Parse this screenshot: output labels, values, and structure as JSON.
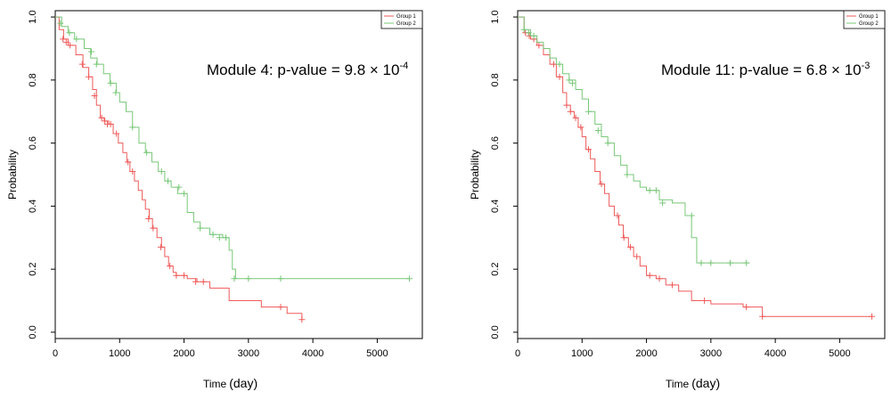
{
  "chart_data": [
    {
      "type": "line",
      "annotation": {
        "prefix": "Module 4: p-value = 9.8 × 10",
        "exponent": "-4"
      },
      "xlabel": {
        "main": "Time",
        "unit": "(day)"
      },
      "ylabel": "Probability",
      "xlim": [
        0,
        5700
      ],
      "ylim": [
        -0.02,
        1.02
      ],
      "xticks": [
        0,
        1000,
        2000,
        3000,
        4000,
        5000
      ],
      "yticks": [
        "0.0",
        "0.2",
        "0.4",
        "0.6",
        "0.8",
        "1.0"
      ],
      "legend_position": "top-right",
      "series": [
        {
          "name": "Group 1",
          "color": "#ef5a5a",
          "x": [
            0,
            60,
            130,
            200,
            320,
            430,
            520,
            580,
            640,
            700,
            760,
            830,
            900,
            980,
            1050,
            1110,
            1160,
            1230,
            1290,
            1350,
            1400,
            1460,
            1510,
            1580,
            1650,
            1700,
            1760,
            1830,
            1880,
            1950,
            2050,
            2200,
            2400,
            2700,
            3200,
            3600,
            3830
          ],
          "y": [
            1.0,
            0.96,
            0.93,
            0.91,
            0.88,
            0.84,
            0.81,
            0.77,
            0.72,
            0.68,
            0.67,
            0.66,
            0.63,
            0.6,
            0.57,
            0.54,
            0.51,
            0.48,
            0.45,
            0.42,
            0.39,
            0.36,
            0.33,
            0.3,
            0.27,
            0.24,
            0.21,
            0.19,
            0.18,
            0.18,
            0.17,
            0.16,
            0.14,
            0.1,
            0.08,
            0.06,
            0.04
          ],
          "censored_x": [
            120,
            170,
            230,
            420,
            520,
            610,
            720,
            770,
            810,
            860,
            950,
            1130,
            1200,
            1450,
            1520,
            1640,
            1780,
            1880,
            2000,
            2180,
            2300,
            3500,
            3830
          ],
          "censored_y": [
            0.93,
            0.92,
            0.91,
            0.85,
            0.81,
            0.75,
            0.68,
            0.67,
            0.66,
            0.66,
            0.63,
            0.54,
            0.51,
            0.36,
            0.33,
            0.27,
            0.21,
            0.18,
            0.18,
            0.16,
            0.16,
            0.08,
            0.04
          ]
        },
        {
          "name": "Group 2",
          "color": "#78c878",
          "x": [
            0,
            100,
            200,
            300,
            450,
            550,
            650,
            750,
            850,
            950,
            1000,
            1100,
            1200,
            1300,
            1400,
            1500,
            1600,
            1700,
            1800,
            1900,
            2050,
            2150,
            2250,
            2400,
            2600,
            2700,
            2750,
            2800,
            5500
          ],
          "y": [
            1.0,
            0.97,
            0.95,
            0.93,
            0.9,
            0.87,
            0.85,
            0.82,
            0.79,
            0.76,
            0.73,
            0.7,
            0.65,
            0.6,
            0.57,
            0.54,
            0.51,
            0.48,
            0.46,
            0.44,
            0.38,
            0.35,
            0.33,
            0.31,
            0.3,
            0.26,
            0.2,
            0.17,
            0.17
          ],
          "censored_x": [
            80,
            220,
            330,
            560,
            640,
            860,
            940,
            1200,
            1420,
            1650,
            1750,
            1920,
            2000,
            2250,
            2450,
            2550,
            2650,
            2780,
            3000,
            3500,
            5500
          ],
          "censored_y": [
            0.98,
            0.95,
            0.93,
            0.89,
            0.85,
            0.79,
            0.76,
            0.65,
            0.57,
            0.51,
            0.48,
            0.46,
            0.44,
            0.33,
            0.31,
            0.3,
            0.3,
            0.17,
            0.17,
            0.17,
            0.17
          ]
        }
      ]
    },
    {
      "type": "line",
      "annotation": {
        "prefix": "Module 11: p-value = 6.8 × 10",
        "exponent": "-3"
      },
      "xlabel": {
        "main": "Time",
        "unit": "(day)"
      },
      "ylabel": "Probability",
      "xlim": [
        0,
        5700
      ],
      "ylim": [
        -0.02,
        1.02
      ],
      "xticks": [
        0,
        1000,
        2000,
        3000,
        4000,
        5000
      ],
      "yticks": [
        "0.0",
        "0.2",
        "0.4",
        "0.6",
        "0.8",
        "1.0"
      ],
      "legend_position": "top-right",
      "series": [
        {
          "name": "Group 1",
          "color": "#ef5a5a",
          "x": [
            0,
            100,
            200,
            300,
            400,
            500,
            600,
            700,
            760,
            820,
            880,
            940,
            1000,
            1060,
            1130,
            1200,
            1280,
            1350,
            1420,
            1500,
            1570,
            1640,
            1720,
            1800,
            1900,
            2000,
            2150,
            2300,
            2500,
            2700,
            3000,
            3500,
            3800,
            5500
          ],
          "y": [
            1.0,
            0.95,
            0.93,
            0.91,
            0.88,
            0.85,
            0.81,
            0.76,
            0.72,
            0.7,
            0.68,
            0.65,
            0.62,
            0.58,
            0.55,
            0.51,
            0.47,
            0.44,
            0.4,
            0.37,
            0.34,
            0.3,
            0.27,
            0.24,
            0.21,
            0.18,
            0.17,
            0.15,
            0.13,
            0.1,
            0.09,
            0.08,
            0.05,
            0.05
          ],
          "censored_x": [
            120,
            180,
            250,
            330,
            560,
            650,
            760,
            820,
            900,
            980,
            1100,
            1300,
            1550,
            1650,
            1750,
            1850,
            2050,
            2200,
            2400,
            2900,
            3550,
            3800,
            5500
          ],
          "censored_y": [
            0.95,
            0.94,
            0.93,
            0.91,
            0.85,
            0.81,
            0.72,
            0.7,
            0.68,
            0.65,
            0.58,
            0.47,
            0.37,
            0.3,
            0.27,
            0.24,
            0.18,
            0.17,
            0.15,
            0.1,
            0.08,
            0.05,
            0.05
          ]
        },
        {
          "name": "Group 2",
          "color": "#78c878",
          "x": [
            0,
            100,
            200,
            300,
            400,
            500,
            600,
            700,
            800,
            900,
            1000,
            1100,
            1200,
            1300,
            1400,
            1500,
            1600,
            1700,
            1800,
            1900,
            2000,
            2100,
            2200,
            2400,
            2600,
            2700,
            2780,
            3600
          ],
          "y": [
            1.0,
            0.96,
            0.94,
            0.92,
            0.9,
            0.87,
            0.85,
            0.82,
            0.8,
            0.77,
            0.74,
            0.7,
            0.66,
            0.62,
            0.6,
            0.56,
            0.53,
            0.5,
            0.48,
            0.46,
            0.45,
            0.45,
            0.42,
            0.41,
            0.37,
            0.3,
            0.22,
            0.22
          ],
          "censored_x": [
            100,
            170,
            250,
            650,
            800,
            850,
            1100,
            1250,
            1400,
            1700,
            2050,
            2150,
            2250,
            2700,
            2850,
            3000,
            3300,
            3550
          ],
          "censored_y": [
            0.96,
            0.95,
            0.94,
            0.85,
            0.8,
            0.79,
            0.7,
            0.64,
            0.6,
            0.5,
            0.45,
            0.45,
            0.41,
            0.37,
            0.22,
            0.22,
            0.22,
            0.22
          ]
        }
      ]
    }
  ]
}
